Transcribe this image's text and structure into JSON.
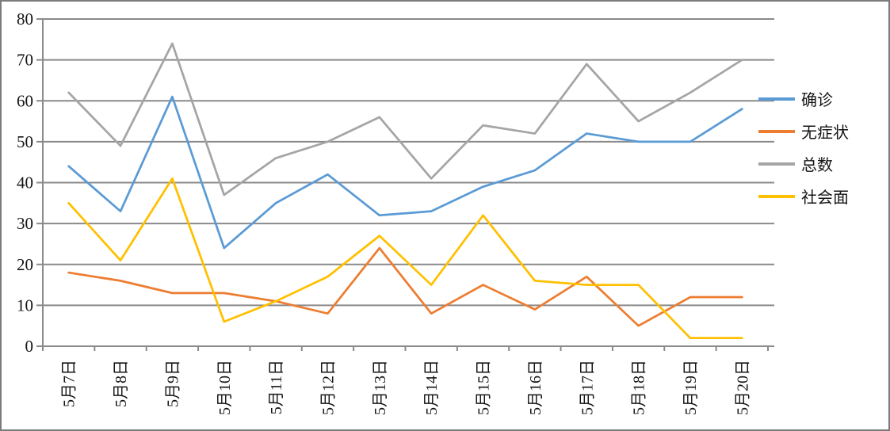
{
  "chart_data": {
    "type": "line",
    "title": "",
    "categories": [
      "5月7日",
      "5月8日",
      "5月9日",
      "5月10日",
      "5月11日",
      "5月12日",
      "5月13日",
      "5月14日",
      "5月15日",
      "5月16日",
      "5月17日",
      "5月18日",
      "5月19日",
      "5月20日"
    ],
    "series": [
      {
        "id": "confirmed",
        "name": "确诊",
        "color": "#5B9BD5",
        "values": [
          44,
          33,
          61,
          24,
          35,
          42,
          32,
          33,
          39,
          43,
          52,
          50,
          50,
          58
        ]
      },
      {
        "id": "asymptomatic",
        "name": "无症状",
        "color": "#ED7D31",
        "values": [
          18,
          16,
          13,
          13,
          11,
          8,
          24,
          8,
          15,
          9,
          17,
          5,
          12,
          12
        ]
      },
      {
        "id": "total",
        "name": "总数",
        "color": "#A5A5A5",
        "values": [
          62,
          49,
          74,
          37,
          46,
          50,
          56,
          41,
          54,
          52,
          69,
          55,
          62,
          70
        ]
      },
      {
        "id": "community",
        "name": "社会面",
        "color": "#FFC000",
        "values": [
          35,
          21,
          41,
          6,
          11,
          17,
          27,
          15,
          32,
          16,
          15,
          15,
          2,
          2
        ]
      }
    ],
    "xlabel": "",
    "ylabel": "",
    "ylim": [
      0,
      80
    ],
    "ytick_step": 10,
    "grid": true,
    "legend_position": "right"
  },
  "colors": {
    "gridline": "#8a8a8a",
    "axis": "#8a8a8a",
    "frame_border": "#7b7b7b",
    "background": "#ffffff",
    "tick_label": "#151515"
  }
}
